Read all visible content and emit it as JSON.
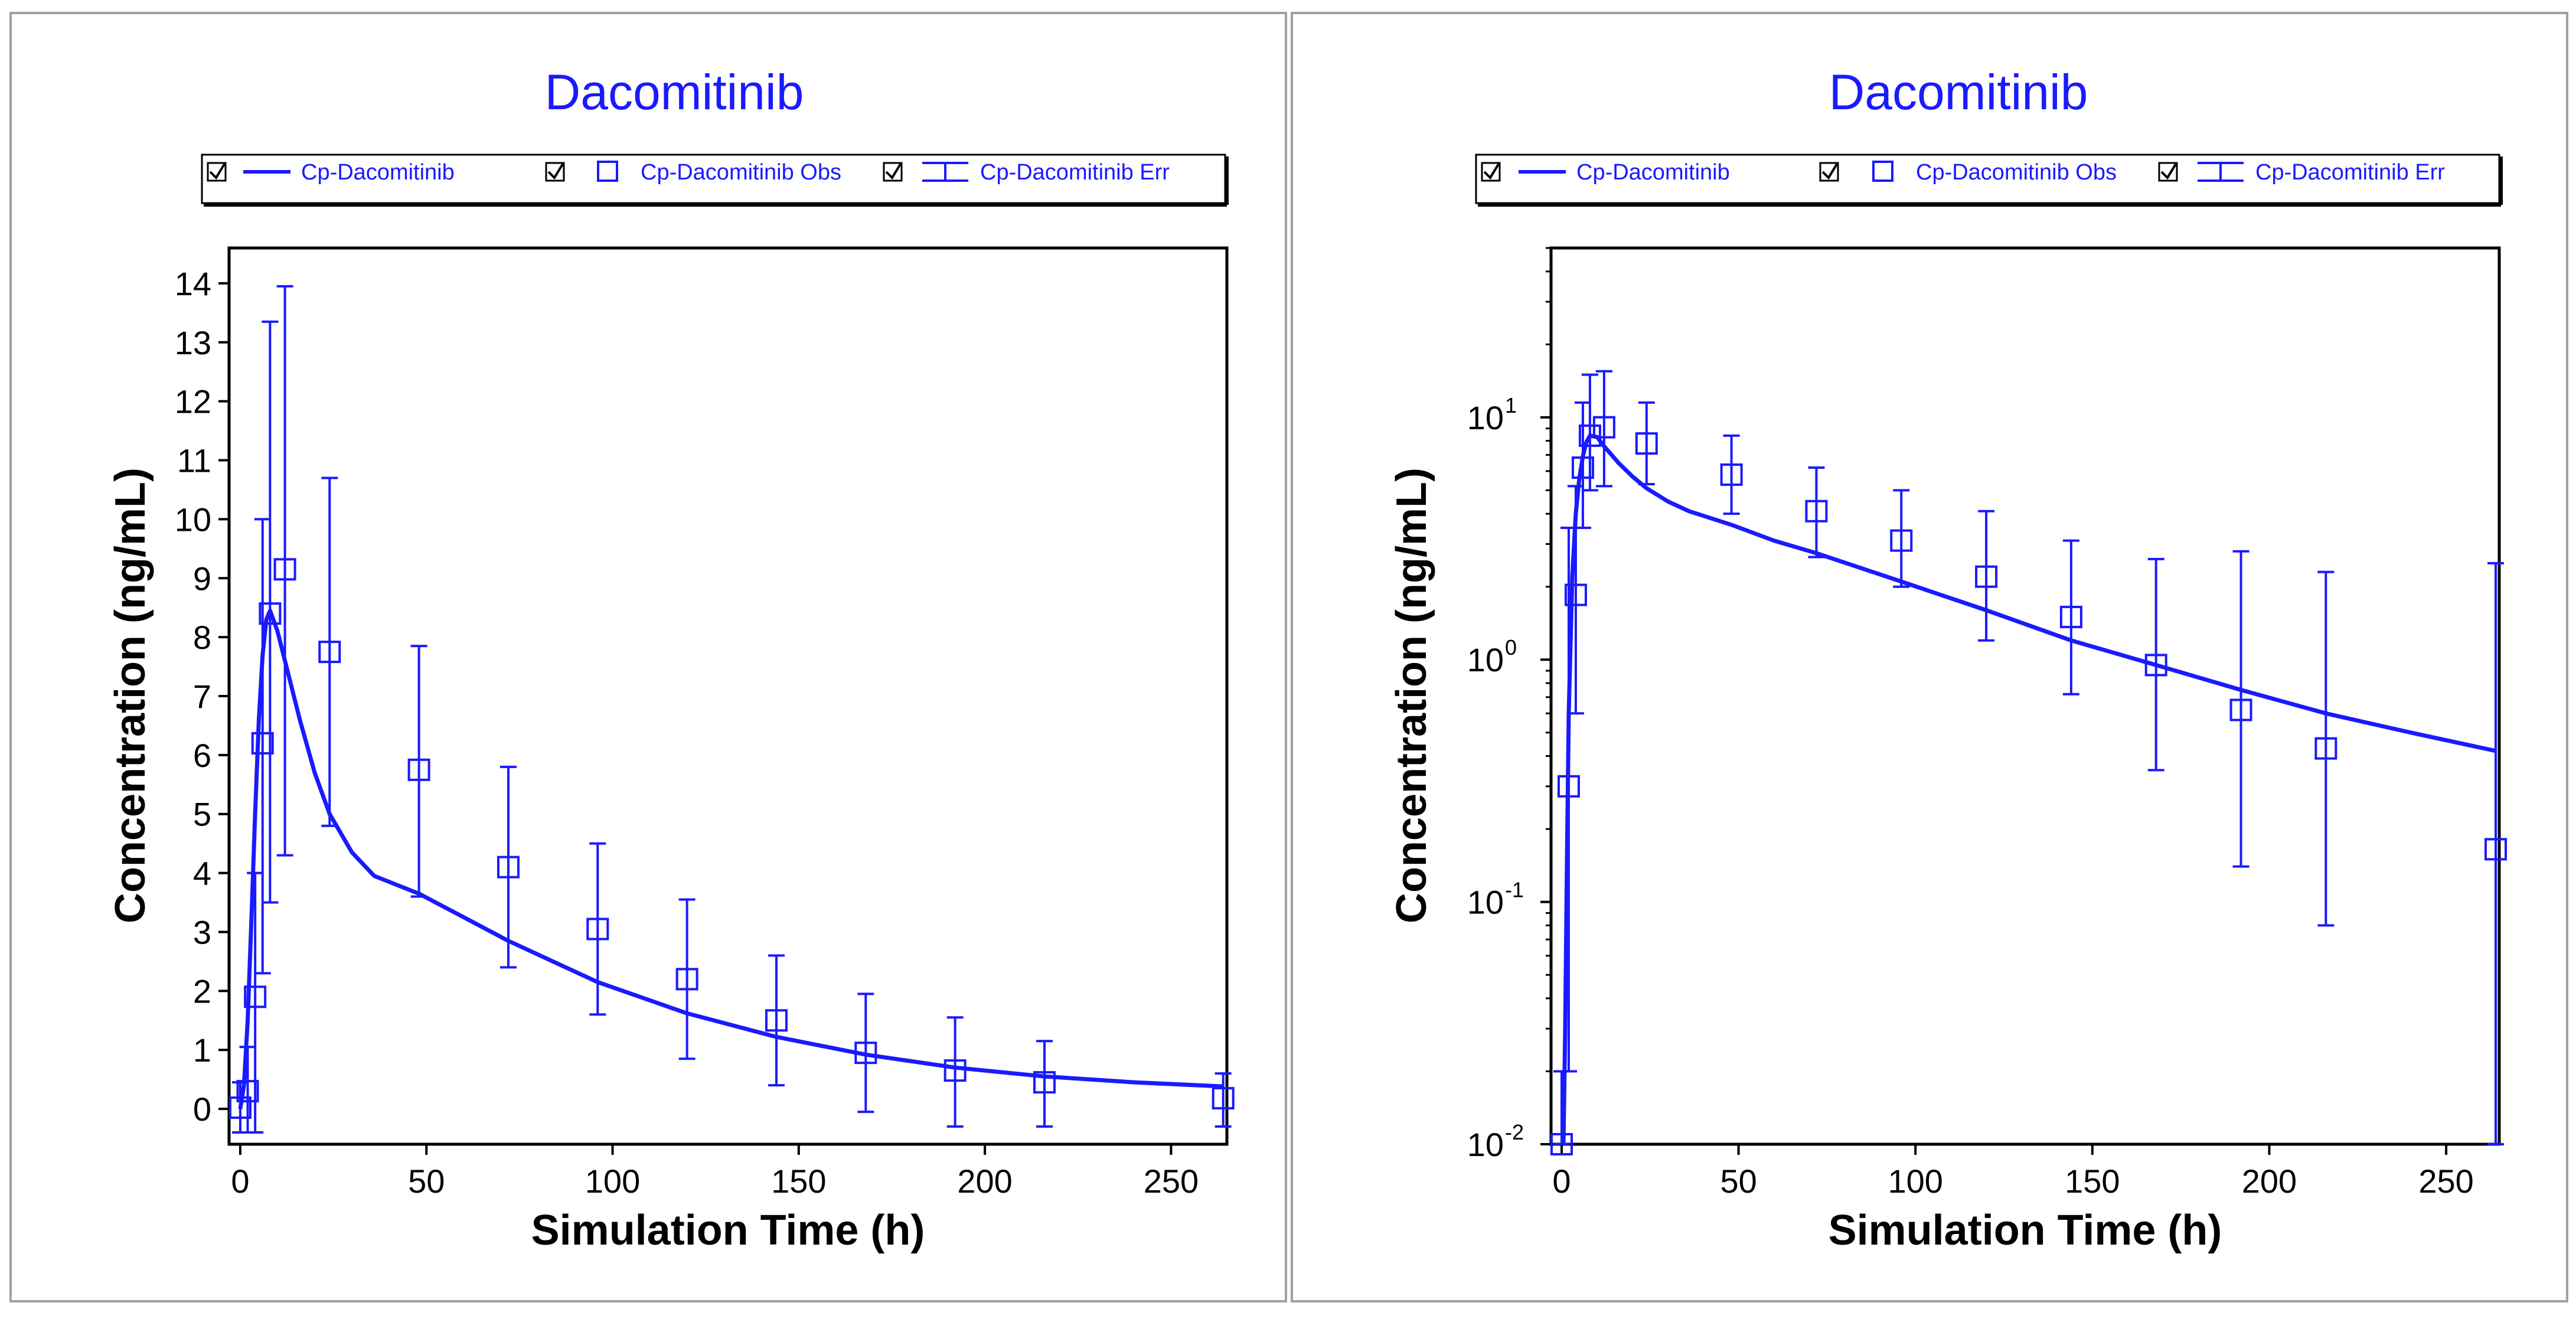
{
  "colors": {
    "series": "#1a1aff",
    "axis": "#000000",
    "panel_border": "#a0a0a0",
    "background": "#ffffff"
  },
  "legend_labels": {
    "curve": "Cp-Dacomitinib",
    "obs": "Cp-Dacomitinib Obs",
    "err": "Cp-Dacomitinib Err"
  },
  "chart_data": [
    {
      "type": "line",
      "title": "Dacomitinib",
      "xlabel": "Simulation Time (h)",
      "ylabel": "Concentration (ng/mL)",
      "yscale": "linear",
      "xlim": [
        -3,
        265
      ],
      "ylim": [
        -0.6,
        14.6
      ],
      "xticks": [
        0,
        50,
        100,
        150,
        200,
        250
      ],
      "yticks": [
        0,
        1,
        2,
        3,
        4,
        5,
        6,
        7,
        8,
        9,
        10,
        11,
        12,
        13,
        14
      ],
      "legend": {
        "position": "top",
        "entries": [
          "Cp-Dacomitinib",
          "Cp-Dacomitinib Obs",
          "Cp-Dacomitinib Err"
        ]
      },
      "series": [
        {
          "name": "Cp-Dacomitinib",
          "kind": "line",
          "x": [
            0,
            1,
            2,
            3,
            4,
            5,
            6,
            7,
            8,
            10,
            12,
            16,
            20,
            24,
            30,
            36,
            48,
            60,
            72,
            96,
            120,
            144,
            168,
            192,
            216,
            240,
            264
          ],
          "y": [
            0,
            0.4,
            1.5,
            3.2,
            5.0,
            6.6,
            7.7,
            8.3,
            8.45,
            8.1,
            7.6,
            6.6,
            5.7,
            5.0,
            4.35,
            3.95,
            3.65,
            3.25,
            2.85,
            2.15,
            1.62,
            1.22,
            0.92,
            0.7,
            0.55,
            0.45,
            0.38
          ]
        },
        {
          "name": "Cp-Dacomitinib Obs",
          "kind": "scatter",
          "x": [
            0,
            2,
            4,
            6,
            8,
            12,
            24,
            48,
            72,
            96,
            120,
            144,
            168,
            192,
            216,
            264
          ],
          "y": [
            0.02,
            0.3,
            1.9,
            6.2,
            8.4,
            9.15,
            7.75,
            5.75,
            4.1,
            3.05,
            2.2,
            1.5,
            0.95,
            0.65,
            0.45,
            0.18
          ]
        },
        {
          "name": "Cp-Dacomitinib Err",
          "kind": "errorbar",
          "x": [
            0,
            2,
            4,
            6,
            8,
            12,
            24,
            48,
            72,
            96,
            120,
            144,
            168,
            192,
            216,
            264
          ],
          "low": [
            -0.4,
            -0.4,
            -0.4,
            2.3,
            3.5,
            4.3,
            4.8,
            3.6,
            2.4,
            1.6,
            0.85,
            0.4,
            -0.05,
            -0.3,
            -0.3,
            -0.3
          ],
          "high": [
            0.45,
            1.05,
            4.0,
            10.0,
            13.35,
            13.95,
            10.7,
            7.85,
            5.8,
            4.5,
            3.55,
            2.6,
            1.95,
            1.55,
            1.15,
            0.6
          ]
        }
      ]
    },
    {
      "type": "line",
      "title": "Dacomitinib",
      "xlabel": "Simulation Time (h)",
      "ylabel": "Concentration (ng/mL)",
      "yscale": "log",
      "xlim": [
        -3,
        265
      ],
      "ylim": [
        0.01,
        50
      ],
      "xticks": [
        0,
        50,
        100,
        150,
        200,
        250
      ],
      "yticks": [
        0.01,
        0.1,
        1,
        10
      ],
      "ytick_labels": [
        {
          "base": "10",
          "exp": "-2"
        },
        {
          "base": "10",
          "exp": "-1"
        },
        {
          "base": "10",
          "exp": "0"
        },
        {
          "base": "10",
          "exp": "1"
        }
      ],
      "legend": {
        "position": "top",
        "entries": [
          "Cp-Dacomitinib",
          "Cp-Dacomitinib Obs",
          "Cp-Dacomitinib Err"
        ]
      },
      "series": [
        {
          "name": "Cp-Dacomitinib",
          "kind": "line",
          "x": [
            0.5,
            1,
            1.5,
            2,
            3,
            4,
            5,
            6,
            7,
            8,
            10,
            12,
            16,
            20,
            24,
            30,
            36,
            48,
            60,
            72,
            96,
            120,
            144,
            168,
            192,
            216,
            240,
            264
          ],
          "y": [
            0.01,
            0.03,
            0.15,
            0.6,
            2.2,
            4.0,
            5.6,
            6.9,
            7.9,
            8.4,
            8.3,
            7.6,
            6.5,
            5.7,
            5.1,
            4.5,
            4.1,
            3.6,
            3.1,
            2.75,
            2.1,
            1.6,
            1.2,
            0.95,
            0.75,
            0.6,
            0.5,
            0.42
          ]
        },
        {
          "name": "Cp-Dacomitinib Obs",
          "kind": "scatter",
          "x": [
            0,
            2,
            4,
            6,
            8,
            12,
            24,
            48,
            72,
            96,
            120,
            144,
            168,
            192,
            216,
            264
          ],
          "y": [
            0.01,
            0.3,
            1.85,
            6.2,
            8.4,
            9.1,
            7.8,
            5.8,
            4.1,
            3.1,
            2.2,
            1.5,
            0.95,
            0.62,
            0.43,
            0.165
          ]
        },
        {
          "name": "Cp-Dacomitinib Err",
          "kind": "errorbar",
          "x": [
            0,
            2,
            4,
            6,
            8,
            12,
            24,
            48,
            72,
            96,
            120,
            144,
            168,
            192,
            216,
            264
          ],
          "low": [
            0.01,
            0.02,
            0.6,
            3.5,
            5.0,
            5.2,
            5.3,
            4.0,
            2.65,
            2.0,
            1.2,
            0.72,
            0.35,
            0.14,
            0.08,
            0.01
          ],
          "high": [
            0.02,
            3.5,
            5.2,
            11.5,
            15.0,
            15.5,
            11.5,
            8.4,
            6.2,
            5.0,
            4.1,
            3.1,
            2.6,
            2.8,
            2.3,
            2.5
          ]
        }
      ]
    }
  ]
}
